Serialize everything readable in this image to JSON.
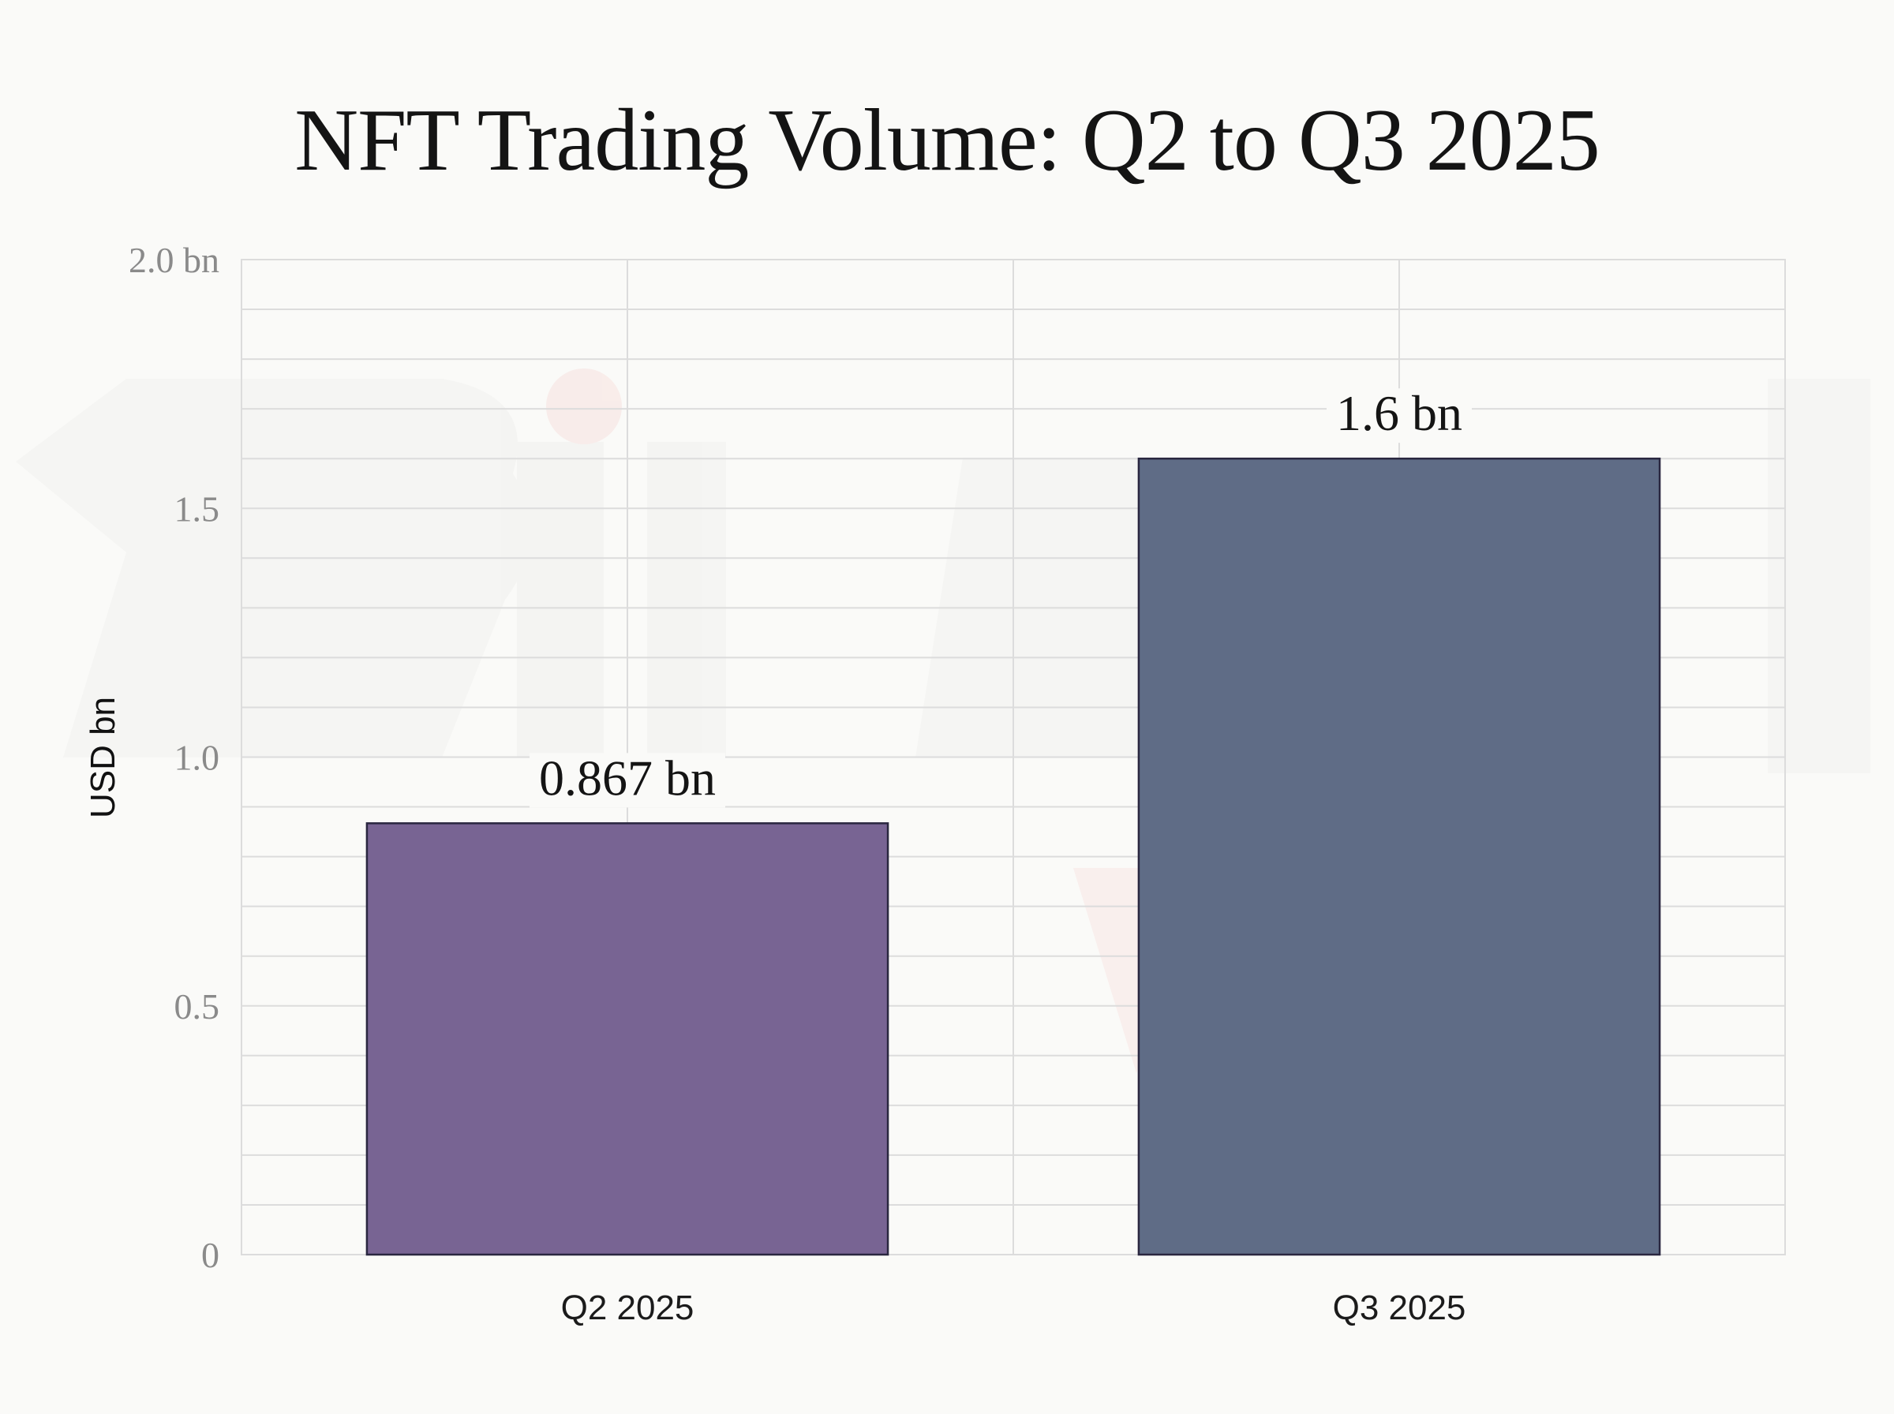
{
  "chart_data": {
    "type": "bar",
    "title": "NFT Trading Volume: Q2 to Q3 2025",
    "xlabel": "",
    "ylabel": "USD bn",
    "categories": [
      "Q2 2025",
      "Q3 2025"
    ],
    "values": [
      0.867,
      1.6
    ],
    "data_labels": [
      "0.867 bn",
      "1.6 bn"
    ],
    "bar_colors": [
      "#786493",
      "#5f6c86"
    ],
    "bar_edge_color": "#2a2740",
    "ylim": [
      0,
      2.0
    ],
    "y_ticks": [
      0,
      0.5,
      1.0,
      1.5,
      2.0
    ],
    "y_tick_labels": [
      "0",
      "0.5",
      "1.0",
      "1.5",
      "2.0 bn"
    ],
    "y_minor_step": 0.1,
    "grid": true,
    "legend": "none"
  },
  "colors": {
    "background": "#fafaf8",
    "grid": "#dcdcdc",
    "watermark_gray": "#f1f1f0",
    "watermark_red": "#f7e3e1"
  },
  "watermark": {
    "text": "Bitcoin"
  }
}
